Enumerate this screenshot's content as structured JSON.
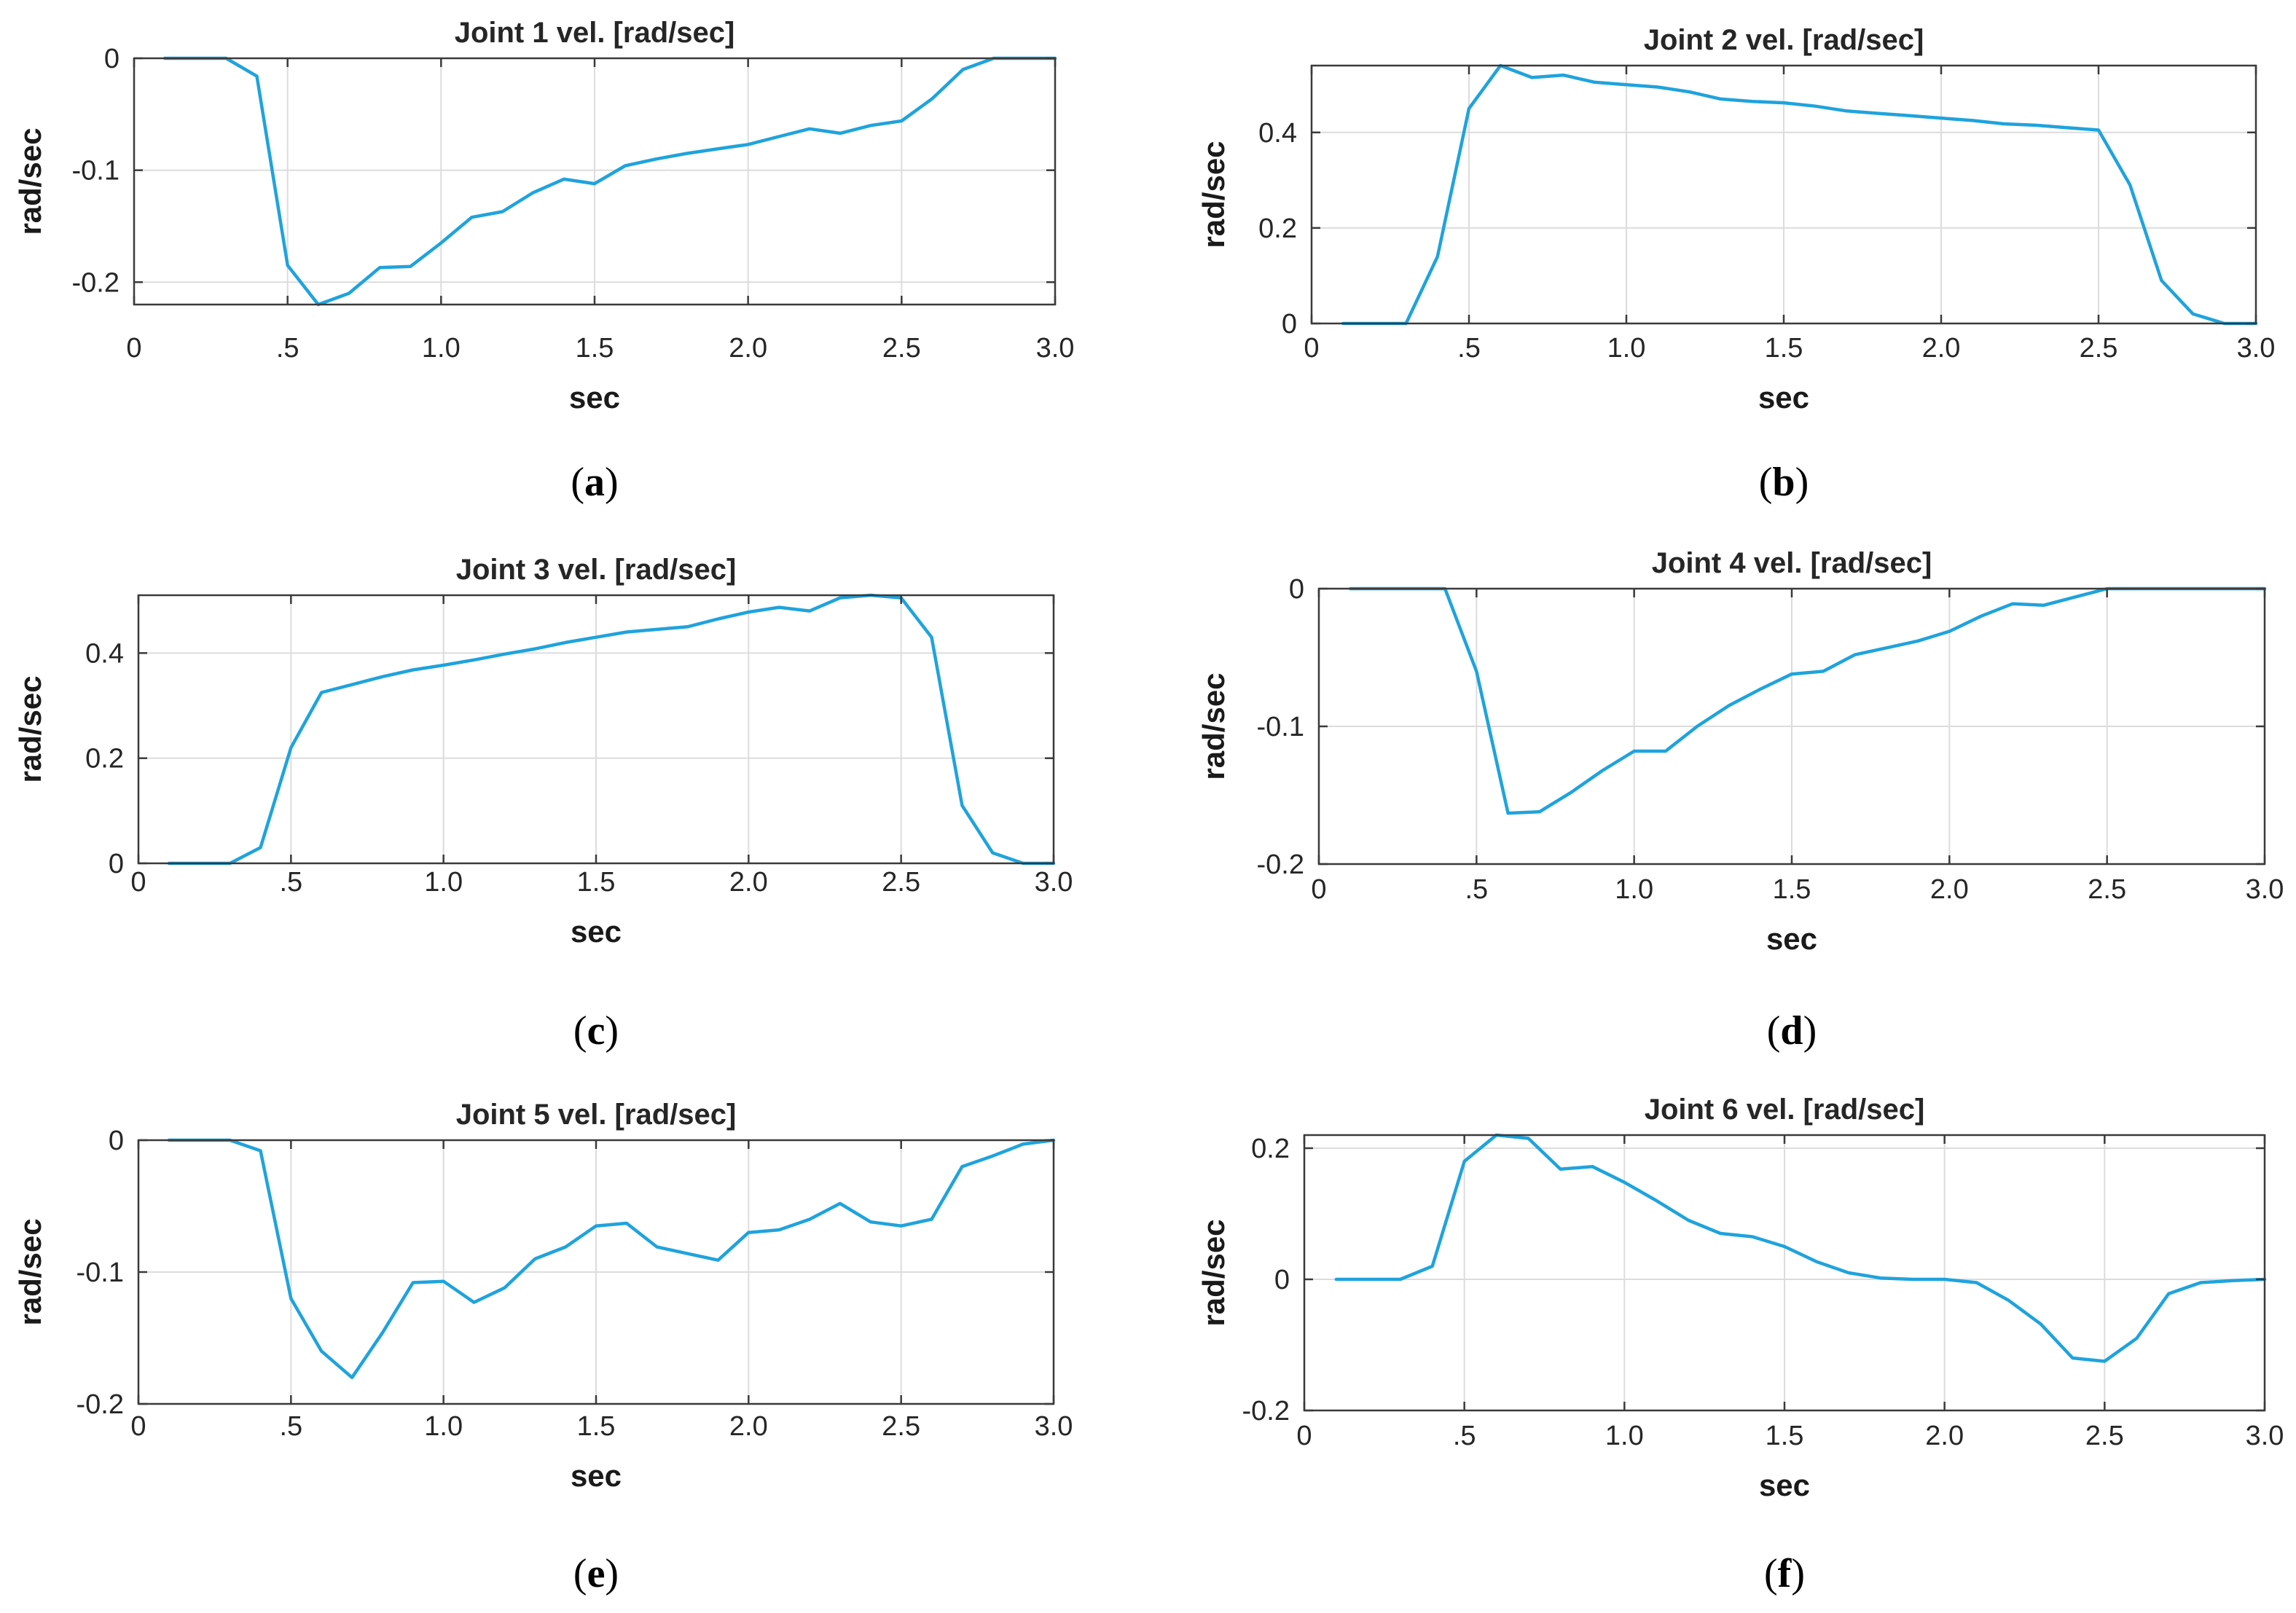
{
  "figure": {
    "series_color": "#1fa3dc"
  },
  "chart_data": [
    {
      "type": "line",
      "panel": "a",
      "title": "Joint 1 vel. [rad/sec]",
      "xlabel": "sec",
      "ylabel": "rad/sec",
      "xlim": [
        0,
        3.0
      ],
      "ylim": [
        -0.22,
        0
      ],
      "xticks": [
        0,
        0.5,
        1.0,
        1.5,
        2.0,
        2.5,
        3.0
      ],
      "xtick_labels": [
        "0",
        ".5",
        "1.0",
        "1.5",
        "2.0",
        "2.5",
        "3.0"
      ],
      "yticks": [
        0,
        -0.1,
        -0.2
      ],
      "ytick_labels": [
        "0",
        "-0.1",
        "-0.2"
      ],
      "grid": true,
      "x": [
        0.1,
        0.2,
        0.3,
        0.4,
        0.5,
        0.6,
        0.7,
        0.8,
        0.9,
        1.0,
        1.1,
        1.2,
        1.3,
        1.4,
        1.5,
        1.6,
        1.7,
        1.8,
        1.9,
        2.0,
        2.1,
        2.2,
        2.3,
        2.4,
        2.5,
        2.6,
        2.7,
        2.8,
        2.9,
        3.0
      ],
      "values": [
        0,
        0,
        0,
        -0.016,
        -0.185,
        -0.22,
        -0.21,
        -0.187,
        -0.186,
        -0.165,
        -0.142,
        -0.137,
        -0.12,
        -0.108,
        -0.112,
        -0.096,
        -0.09,
        -0.085,
        -0.081,
        -0.077,
        -0.07,
        -0.063,
        -0.067,
        -0.06,
        -0.056,
        -0.036,
        -0.01,
        0,
        0,
        0
      ]
    },
    {
      "type": "line",
      "panel": "b",
      "title": "Joint 2 vel. [rad/sec]",
      "xlabel": "sec",
      "ylabel": "rad/sec",
      "xlim": [
        0,
        3.0
      ],
      "ylim": [
        0,
        0.54
      ],
      "xticks": [
        0,
        0.5,
        1.0,
        1.5,
        2.0,
        2.5,
        3.0
      ],
      "xtick_labels": [
        "0",
        ".5",
        "1.0",
        "1.5",
        "2.0",
        "2.5",
        "3.0"
      ],
      "yticks": [
        0,
        0.2,
        0.4
      ],
      "ytick_labels": [
        "0",
        "0.2",
        "0.4"
      ],
      "grid": true,
      "x": [
        0.1,
        0.2,
        0.3,
        0.4,
        0.5,
        0.6,
        0.7,
        0.8,
        0.9,
        1.0,
        1.1,
        1.2,
        1.3,
        1.4,
        1.5,
        1.6,
        1.7,
        1.8,
        1.9,
        2.0,
        2.1,
        2.2,
        2.3,
        2.4,
        2.5,
        2.6,
        2.7,
        2.8,
        2.9,
        3.0
      ],
      "values": [
        0,
        0,
        0,
        0.14,
        0.45,
        0.54,
        0.515,
        0.52,
        0.505,
        0.5,
        0.495,
        0.485,
        0.47,
        0.465,
        0.462,
        0.455,
        0.445,
        0.44,
        0.435,
        0.43,
        0.425,
        0.418,
        0.415,
        0.41,
        0.405,
        0.29,
        0.09,
        0.02,
        0,
        0
      ]
    },
    {
      "type": "line",
      "panel": "c",
      "title": "Joint 3 vel. [rad/sec]",
      "xlabel": "sec",
      "ylabel": "rad/sec",
      "xlim": [
        0,
        3.0
      ],
      "ylim": [
        0,
        0.51
      ],
      "xticks": [
        0,
        0.5,
        1.0,
        1.5,
        2.0,
        2.5,
        3.0
      ],
      "xtick_labels": [
        "0",
        ".5",
        "1.0",
        "1.5",
        "2.0",
        "2.5",
        "3.0"
      ],
      "yticks": [
        0,
        0.2,
        0.4
      ],
      "ytick_labels": [
        "0",
        "0.2",
        "0.4"
      ],
      "grid": true,
      "x": [
        0.1,
        0.2,
        0.3,
        0.4,
        0.5,
        0.6,
        0.7,
        0.8,
        0.9,
        1.0,
        1.1,
        1.2,
        1.3,
        1.4,
        1.5,
        1.6,
        1.7,
        1.8,
        1.9,
        2.0,
        2.1,
        2.2,
        2.3,
        2.4,
        2.5,
        2.6,
        2.7,
        2.8,
        2.9,
        3.0
      ],
      "values": [
        0,
        0,
        0,
        0.03,
        0.22,
        0.325,
        0.34,
        0.355,
        0.368,
        0.377,
        0.387,
        0.398,
        0.408,
        0.42,
        0.43,
        0.44,
        0.445,
        0.45,
        0.465,
        0.478,
        0.487,
        0.48,
        0.505,
        0.51,
        0.505,
        0.43,
        0.11,
        0.02,
        0,
        0
      ]
    },
    {
      "type": "line",
      "panel": "d",
      "title": "Joint 4 vel. [rad/sec]",
      "xlabel": "sec",
      "ylabel": "rad/sec",
      "xlim": [
        0,
        3.0
      ],
      "ylim": [
        -0.2,
        0
      ],
      "xticks": [
        0,
        0.5,
        1.0,
        1.5,
        2.0,
        2.5,
        3.0
      ],
      "xtick_labels": [
        "0",
        ".5",
        "1.0",
        "1.5",
        "2.0",
        "2.5",
        "3.0"
      ],
      "yticks": [
        0,
        -0.1,
        -0.2
      ],
      "ytick_labels": [
        "0",
        "-0.1",
        "-0.2"
      ],
      "grid": true,
      "x": [
        0.1,
        0.2,
        0.3,
        0.4,
        0.5,
        0.6,
        0.7,
        0.8,
        0.9,
        1.0,
        1.1,
        1.2,
        1.3,
        1.4,
        1.5,
        1.6,
        1.7,
        1.8,
        1.9,
        2.0,
        2.1,
        2.2,
        2.3,
        2.4,
        2.5,
        2.6,
        2.7,
        2.8,
        2.9,
        3.0
      ],
      "values": [
        0,
        0,
        0,
        0,
        -0.06,
        -0.163,
        -0.162,
        -0.148,
        -0.132,
        -0.118,
        -0.118,
        -0.1,
        -0.085,
        -0.073,
        -0.062,
        -0.06,
        -0.048,
        -0.043,
        -0.038,
        -0.031,
        -0.02,
        -0.011,
        -0.012,
        -0.006,
        0,
        0,
        0,
        0,
        0,
        0
      ]
    },
    {
      "type": "line",
      "panel": "e",
      "title": "Joint 5 vel. [rad/sec]",
      "xlabel": "sec",
      "ylabel": "rad/sec",
      "xlim": [
        0,
        3.0
      ],
      "ylim": [
        -0.2,
        0
      ],
      "xticks": [
        0,
        0.5,
        1.0,
        1.5,
        2.0,
        2.5,
        3.0
      ],
      "xtick_labels": [
        "0",
        ".5",
        "1.0",
        "1.5",
        "2.0",
        "2.5",
        "3.0"
      ],
      "yticks": [
        0,
        -0.1,
        -0.2
      ],
      "ytick_labels": [
        "0",
        "-0.1",
        "-0.2"
      ],
      "grid": true,
      "x": [
        0.1,
        0.2,
        0.3,
        0.4,
        0.5,
        0.6,
        0.7,
        0.8,
        0.9,
        1.0,
        1.1,
        1.2,
        1.3,
        1.4,
        1.5,
        1.6,
        1.7,
        1.8,
        1.9,
        2.0,
        2.1,
        2.2,
        2.3,
        2.4,
        2.5,
        2.6,
        2.7,
        2.8,
        2.9,
        3.0
      ],
      "values": [
        0,
        0,
        0,
        -0.008,
        -0.12,
        -0.16,
        -0.18,
        -0.146,
        -0.108,
        -0.107,
        -0.123,
        -0.112,
        -0.09,
        -0.081,
        -0.065,
        -0.063,
        -0.081,
        -0.086,
        -0.091,
        -0.07,
        -0.068,
        -0.06,
        -0.048,
        -0.062,
        -0.065,
        -0.06,
        -0.02,
        -0.012,
        -0.003,
        0
      ]
    },
    {
      "type": "line",
      "panel": "f",
      "title": "Joint 6 vel. [rad/sec]",
      "xlabel": "sec",
      "ylabel": "rad/sec",
      "xlim": [
        0,
        3.0
      ],
      "ylim": [
        -0.2,
        0.22
      ],
      "xticks": [
        0,
        0.5,
        1.0,
        1.5,
        2.0,
        2.5,
        3.0
      ],
      "xtick_labels": [
        "0",
        ".5",
        "1.0",
        "1.5",
        "2.0",
        "2.5",
        "3.0"
      ],
      "yticks": [
        0.2,
        0,
        -0.2
      ],
      "ytick_labels": [
        "0.2",
        "0",
        "-0.2"
      ],
      "grid": true,
      "x": [
        0.1,
        0.2,
        0.3,
        0.4,
        0.5,
        0.6,
        0.7,
        0.8,
        0.9,
        1.0,
        1.1,
        1.2,
        1.3,
        1.4,
        1.5,
        1.6,
        1.7,
        1.8,
        1.9,
        2.0,
        2.1,
        2.2,
        2.3,
        2.4,
        2.5,
        2.6,
        2.7,
        2.8,
        2.9,
        3.0
      ],
      "values": [
        0,
        0,
        0,
        0.02,
        0.18,
        0.22,
        0.215,
        0.168,
        0.172,
        0.148,
        0.12,
        0.09,
        0.07,
        0.065,
        0.05,
        0.027,
        0.01,
        0.002,
        0,
        0,
        -0.005,
        -0.032,
        -0.068,
        -0.12,
        -0.125,
        -0.09,
        -0.022,
        -0.005,
        -0.002,
        0
      ]
    }
  ],
  "panel_labels": [
    {
      "open": "(",
      "letter": "a",
      "close": ")"
    },
    {
      "open": "(",
      "letter": "b",
      "close": ")"
    },
    {
      "open": "(",
      "letter": "c",
      "close": ")"
    },
    {
      "open": "(",
      "letter": "d",
      "close": ")"
    },
    {
      "open": "(",
      "letter": "e",
      "close": ")"
    },
    {
      "open": "(",
      "letter": "f",
      "close": ")"
    }
  ]
}
